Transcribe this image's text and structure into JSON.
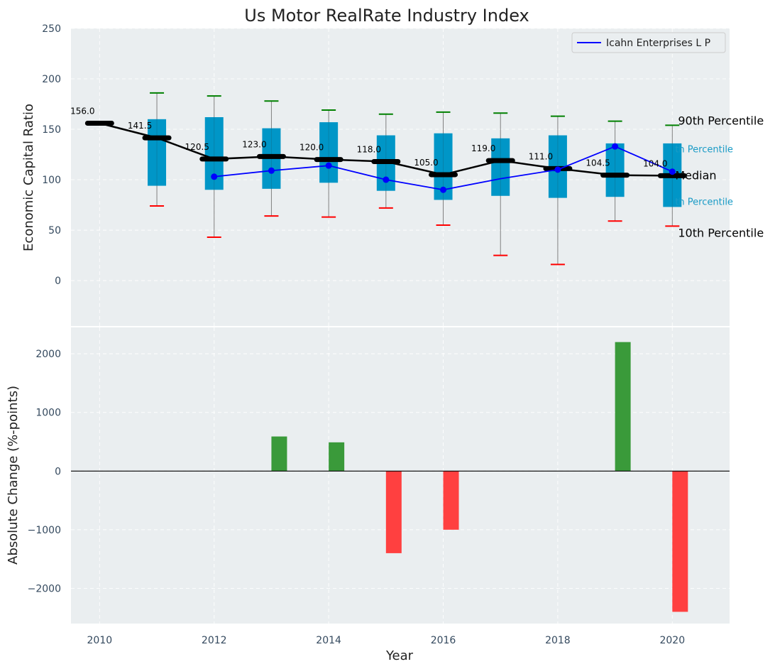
{
  "chart_data": [
    {
      "type": "box",
      "title": "Us Motor RealRate Industry Index",
      "xlabel": "",
      "ylabel": "Economic Capital Ratio",
      "xlim": [
        2009.5,
        2021
      ],
      "ylim": [
        -45,
        250
      ],
      "yticks": [
        0,
        50,
        100,
        150,
        200,
        250
      ],
      "grid": true,
      "legend": {
        "position": "top-right",
        "entries": [
          "Icahn Enterprises L P"
        ]
      },
      "median_labels": [
        "156.0",
        "141.5",
        "120.5",
        "123.0",
        "120.0",
        "118.0",
        "105.0",
        "119.0",
        "111.0",
        "104.5",
        "104.0"
      ],
      "series": [
        {
          "name": "Median",
          "x": [
            2010,
            2011,
            2012,
            2013,
            2014,
            2015,
            2016,
            2017,
            2018,
            2019,
            2020
          ],
          "values": [
            156.0,
            141.5,
            120.5,
            123.0,
            120.0,
            118.0,
            105.0,
            119.0,
            111.0,
            104.5,
            104.0
          ]
        },
        {
          "name": "Icahn Enterprises L P",
          "x": [
            2012,
            2013,
            2014,
            2015,
            2016,
            2017,
            2018,
            2019,
            2020
          ],
          "values": [
            103,
            109,
            114,
            100,
            90,
            101,
            110,
            133,
            108
          ],
          "markers_at": [
            2012,
            2013,
            2014,
            2015,
            2016,
            2018,
            2019,
            2020
          ]
        }
      ],
      "boxes": [
        {
          "x": 2010,
          "p10": 156,
          "q1": 156,
          "q3": 156,
          "p90": 156,
          "median": 156.0,
          "has_box": false,
          "has_whiskers": false
        },
        {
          "x": 2011,
          "p10": 74,
          "q1": 94,
          "q3": 160,
          "p90": 186,
          "median": 141.5,
          "has_box": true,
          "has_whiskers": true
        },
        {
          "x": 2012,
          "p10": 43,
          "q1": 90,
          "q3": 162,
          "p90": 183,
          "median": 120.5,
          "has_box": true,
          "has_whiskers": true
        },
        {
          "x": 2013,
          "p10": 64,
          "q1": 91,
          "q3": 151,
          "p90": 178,
          "median": 123.0,
          "has_box": true,
          "has_whiskers": true
        },
        {
          "x": 2014,
          "p10": 63,
          "q1": 97,
          "q3": 157,
          "p90": 169,
          "median": 120.0,
          "has_box": true,
          "has_whiskers": true
        },
        {
          "x": 2015,
          "p10": 72,
          "q1": 89,
          "q3": 144,
          "p90": 165,
          "median": 118.0,
          "has_box": true,
          "has_whiskers": true
        },
        {
          "x": 2016,
          "p10": 55,
          "q1": 80,
          "q3": 146,
          "p90": 167,
          "median": 105.0,
          "has_box": true,
          "has_whiskers": true
        },
        {
          "x": 2017,
          "p10": 25,
          "q1": 84,
          "q3": 141,
          "p90": 166,
          "median": 119.0,
          "has_box": true,
          "has_whiskers": true
        },
        {
          "x": 2018,
          "p10": 16,
          "q1": 82,
          "q3": 144,
          "p90": 163,
          "median": 111.0,
          "has_box": true,
          "has_whiskers": true
        },
        {
          "x": 2019,
          "p10": 59,
          "q1": 83,
          "q3": 136,
          "p90": 158,
          "median": 104.5,
          "has_box": true,
          "has_whiskers": true
        },
        {
          "x": 2020,
          "p10": 54,
          "q1": 73,
          "q3": 136,
          "p90": 154,
          "median": 104.0,
          "has_box": true,
          "has_whiskers": true
        }
      ],
      "annotations": [
        {
          "text": "90th Percentile",
          "x_data": 2020.1,
          "y_data": 158,
          "color": "#000000"
        },
        {
          "text": "th Percentile",
          "x_data": 2020.05,
          "y_data": 130,
          "color": "#1a9bc6"
        },
        {
          "text": "Median",
          "x_data": 2020.05,
          "y_data": 104,
          "color": "#000000"
        },
        {
          "text": "th Percentile",
          "x_data": 2020.05,
          "y_data": 78,
          "color": "#1a9bc6"
        },
        {
          "text": "10th Percentile",
          "x_data": 2020.1,
          "y_data": 47,
          "color": "#000000"
        }
      ],
      "colors": {
        "box": "#0096c7",
        "median_line": "#000000",
        "icahn": "#0000ff",
        "p90_cap": "#008000",
        "p10_cap": "#ff0000",
        "whisker": "#808080"
      }
    },
    {
      "type": "bar",
      "title": "",
      "xlabel": "Year",
      "ylabel": "Absolute Change (%-points)",
      "xlim": [
        2009.5,
        2021
      ],
      "ylim": [
        -2600,
        2450
      ],
      "yticks": [
        -2000,
        -1000,
        0,
        1000,
        2000
      ],
      "xticks": [
        2010,
        2012,
        2014,
        2016,
        2018,
        2020
      ],
      "grid": true,
      "x": [
        2013,
        2014,
        2015,
        2016,
        2019,
        2020
      ],
      "values": [
        590,
        490,
        -1400,
        -1000,
        2200,
        -2400
      ],
      "colors": {
        "positive": "#3a9a3a",
        "negative": "#ff4040"
      }
    }
  ]
}
